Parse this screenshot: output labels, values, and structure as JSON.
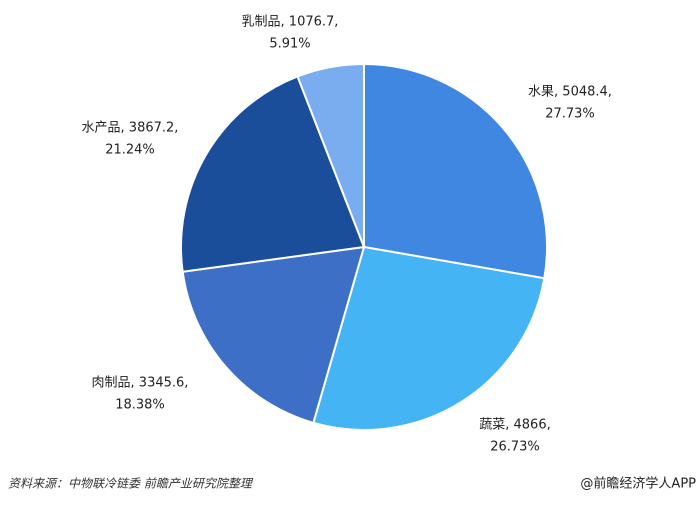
{
  "chart_data": {
    "type": "pie",
    "values": [
      5048.4,
      4866,
      3345.6,
      3867.2,
      1076.7
    ],
    "value_labels": [
      [
        "水果, 5048.4,",
        "27.73%"
      ],
      [
        "蔬菜, 4866,",
        "26.73%"
      ],
      [
        "肉制品, 3345.6,",
        "18.38%"
      ],
      [
        "水产品, 3867.2,",
        "21.24%"
      ],
      [
        "乳制品, 1076.7,",
        "5.91%"
      ]
    ],
    "colors": [
      "#3f87e0",
      "#45b4f5",
      "#3d6fc7",
      "#1a4e9a",
      "#7aadf0"
    ],
    "source": "资料来源：中物联冷链委 前瞻产业研究院整理",
    "credit": "@前瞻经济学人APP"
  }
}
